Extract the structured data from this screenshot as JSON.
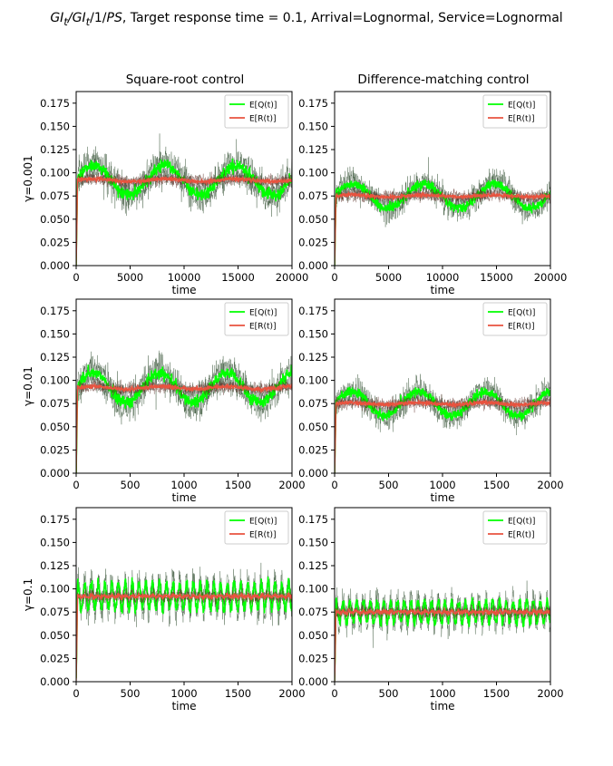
{
  "figure": {
    "title_part1": "GI",
    "title_sub1": "t",
    "title_part2": "/GI",
    "title_sub2": "t",
    "title_part3": "/1/",
    "title_ps": "PS",
    "title_rest": ", Target response time = 0.1, Arrival=Lognormal, Service=Lognormal"
  },
  "columns": [
    "Square-root control",
    "Difference-matching control"
  ],
  "chart_data": [
    {
      "type": "line",
      "panel": "row1-col1",
      "title": "Square-root control",
      "xlabel": "time",
      "ylabel": "γ=0.001",
      "xlim": [
        0,
        20000
      ],
      "ylim": [
        0,
        0.1875
      ],
      "xticks": [
        "0",
        "5000",
        "10000",
        "15000",
        "20000"
      ],
      "yticks": [
        "0.000",
        "0.025",
        "0.050",
        "0.075",
        "0.100",
        "0.125",
        "0.150",
        "0.175"
      ],
      "legend": "top-right",
      "series": [
        {
          "name": "E[Q(t)]",
          "color": "#00ff00",
          "mean": 0.092,
          "amplitude": 0.016,
          "period": 6600,
          "phase": 0.0,
          "noise": 0.009
        },
        {
          "name": "E[R(t)]",
          "color": "#e8533f",
          "mean": 0.092,
          "amplitude": 0.0015,
          "period": 6600,
          "phase": 0.0,
          "noise": 0.003
        }
      ]
    },
    {
      "type": "line",
      "panel": "row1-col2",
      "title": "Difference-matching control",
      "xlabel": "time",
      "ylabel": "",
      "xlim": [
        0,
        20000
      ],
      "ylim": [
        0,
        0.1875
      ],
      "xticks": [
        "0",
        "5000",
        "10000",
        "15000",
        "20000"
      ],
      "yticks": [
        "0.000",
        "0.025",
        "0.050",
        "0.075",
        "0.100",
        "0.125",
        "0.150",
        "0.175"
      ],
      "legend": "top-right",
      "series": [
        {
          "name": "E[Q(t)]",
          "color": "#00ff00",
          "mean": 0.075,
          "amplitude": 0.013,
          "period": 6600,
          "phase": 0.0,
          "noise": 0.007
        },
        {
          "name": "E[R(t)]",
          "color": "#e8533f",
          "mean": 0.075,
          "amplitude": 0.001,
          "period": 6600,
          "phase": 0.0,
          "noise": 0.003
        }
      ]
    },
    {
      "type": "line",
      "panel": "row2-col1",
      "title": "",
      "xlabel": "time",
      "ylabel": "γ=0.01",
      "xlim": [
        0,
        2000
      ],
      "ylim": [
        0,
        0.1875
      ],
      "xticks": [
        "0",
        "500",
        "1000",
        "1500",
        "2000"
      ],
      "yticks": [
        "0.000",
        "0.025",
        "0.050",
        "0.075",
        "0.100",
        "0.125",
        "0.150",
        "0.175"
      ],
      "legend": "top-right",
      "series": [
        {
          "name": "E[Q(t)]",
          "color": "#00ff00",
          "mean": 0.092,
          "amplitude": 0.016,
          "period": 620,
          "phase": 0.0,
          "noise": 0.009
        },
        {
          "name": "E[R(t)]",
          "color": "#e8533f",
          "mean": 0.092,
          "amplitude": 0.0015,
          "period": 620,
          "phase": 0.0,
          "noise": 0.003
        }
      ]
    },
    {
      "type": "line",
      "panel": "row2-col2",
      "title": "",
      "xlabel": "time",
      "ylabel": "",
      "xlim": [
        0,
        2000
      ],
      "ylim": [
        0,
        0.1875
      ],
      "xticks": [
        "0",
        "500",
        "1000",
        "1500",
        "2000"
      ],
      "yticks": [
        "0.000",
        "0.025",
        "0.050",
        "0.075",
        "0.100",
        "0.125",
        "0.150",
        "0.175"
      ],
      "legend": "top-right",
      "series": [
        {
          "name": "E[Q(t)]",
          "color": "#00ff00",
          "mean": 0.075,
          "amplitude": 0.013,
          "period": 620,
          "phase": 0.0,
          "noise": 0.007
        },
        {
          "name": "E[R(t)]",
          "color": "#e8533f",
          "mean": 0.075,
          "amplitude": 0.001,
          "period": 620,
          "phase": 0.0,
          "noise": 0.003
        }
      ]
    },
    {
      "type": "line",
      "panel": "row3-col1",
      "title": "",
      "xlabel": "time",
      "ylabel": "γ=0.1",
      "xlim": [
        0,
        2000
      ],
      "ylim": [
        0,
        0.1875
      ],
      "xticks": [
        "0",
        "500",
        "1000",
        "1500",
        "2000"
      ],
      "yticks": [
        "0.000",
        "0.025",
        "0.050",
        "0.075",
        "0.100",
        "0.125",
        "0.150",
        "0.175"
      ],
      "legend": "top-right",
      "series": [
        {
          "name": "E[Q(t)]",
          "color": "#00ff00",
          "mean": 0.092,
          "amplitude": 0.014,
          "period": 63,
          "phase": 0.0,
          "noise": 0.008
        },
        {
          "name": "E[R(t)]",
          "color": "#e8533f",
          "mean": 0.092,
          "amplitude": 0.001,
          "period": 63,
          "phase": 0.0,
          "noise": 0.003
        }
      ]
    },
    {
      "type": "line",
      "panel": "row3-col2",
      "title": "",
      "xlabel": "time",
      "ylabel": "",
      "xlim": [
        0,
        2000
      ],
      "ylim": [
        0,
        0.1875
      ],
      "xticks": [
        "0",
        "500",
        "1000",
        "1500",
        "2000"
      ],
      "yticks": [
        "0.000",
        "0.025",
        "0.050",
        "0.075",
        "0.100",
        "0.125",
        "0.150",
        "0.175"
      ],
      "legend": "top-right",
      "series": [
        {
          "name": "E[Q(t)]",
          "color": "#00ff00",
          "mean": 0.075,
          "amplitude": 0.011,
          "period": 63,
          "phase": 0.0,
          "noise": 0.007
        },
        {
          "name": "E[R(t)]",
          "color": "#e8533f",
          "mean": 0.075,
          "amplitude": 0.001,
          "period": 63,
          "phase": 0.0,
          "noise": 0.003
        }
      ]
    }
  ]
}
